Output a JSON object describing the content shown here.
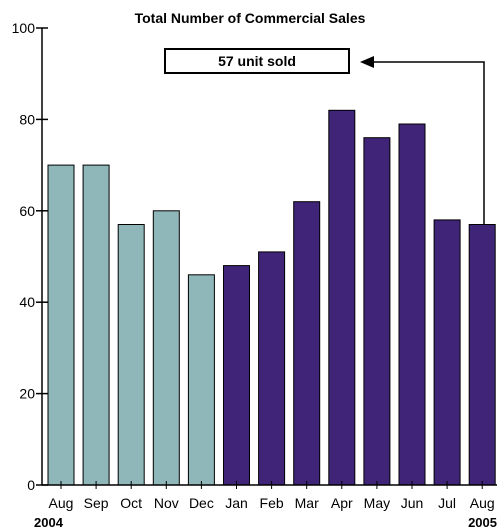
{
  "chart_data": {
    "type": "bar",
    "title": "Total Number of Commercial Sales",
    "categories": [
      "Aug",
      "Sep",
      "Oct",
      "Nov",
      "Dec",
      "Jan",
      "Feb",
      "Mar",
      "Apr",
      "May",
      "Jun",
      "Jul",
      "Aug"
    ],
    "values": [
      70,
      70,
      57,
      60,
      46,
      48,
      51,
      62,
      82,
      76,
      79,
      58,
      57
    ],
    "year_labels": [
      "2004",
      "2005"
    ],
    "xlabel": "",
    "ylabel": "",
    "ylim": [
      0,
      100
    ],
    "yticks": [
      0,
      20,
      40,
      60,
      80,
      100
    ],
    "grid": false,
    "colors": {
      "2004": "#8fb6b8",
      "2005": "#3f2478"
    },
    "annotation": {
      "text": "57 unit sold",
      "points_to_category_index": 12
    }
  }
}
